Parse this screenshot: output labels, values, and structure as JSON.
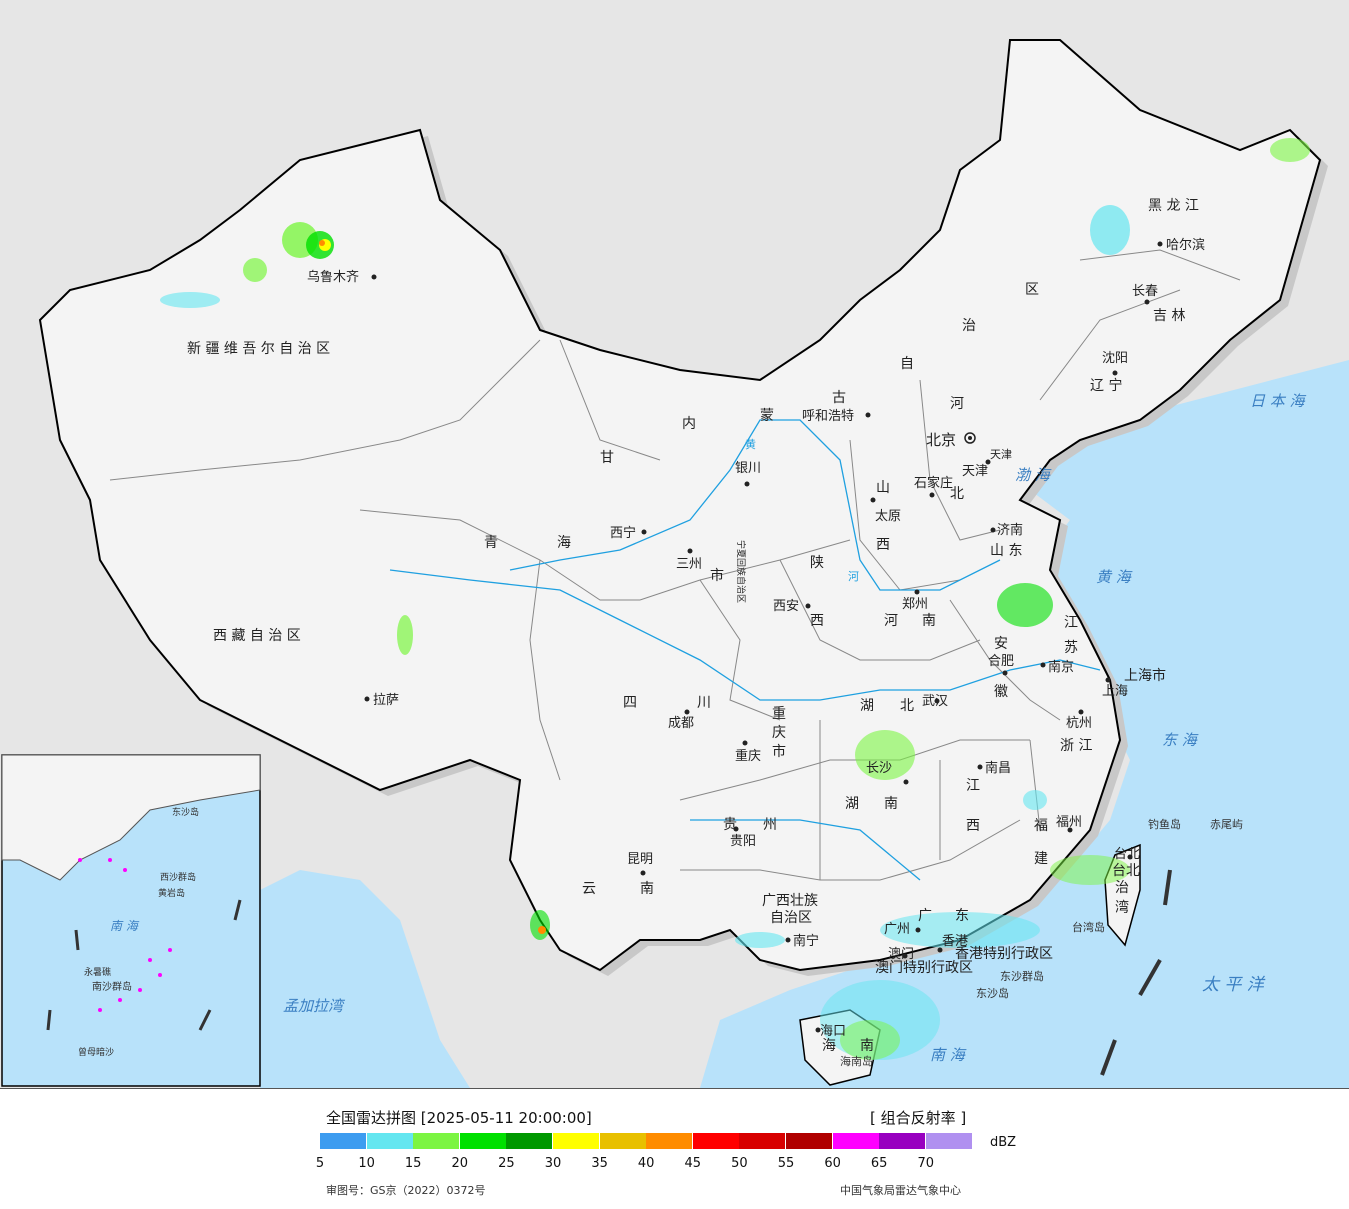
{
  "title": "全国雷达拼图 [2025-05-11 20:00:00]",
  "product": "[ 组合反射率 ]",
  "unit": "dBZ",
  "legend": {
    "colors": [
      "#3d9cf0",
      "#64e6f0",
      "#7cf542",
      "#00e000",
      "#009800",
      "#ffff00",
      "#e8c000",
      "#ff8c00",
      "#ff0000",
      "#d80000",
      "#b00000",
      "#ff00ff",
      "#9800c0",
      "#b090f0"
    ],
    "ticks": [
      "5",
      "10",
      "15",
      "20",
      "25",
      "30",
      "35",
      "40",
      "45",
      "50",
      "55",
      "60",
      "65",
      "70"
    ]
  },
  "credits": {
    "review_number": "审图号：GS京（2022）0372号",
    "agency": "中国气象局雷达气象中心"
  },
  "colors": {
    "sea": "#b8e2fa",
    "land": "#f4f4f4",
    "outside": "#e6e6e6",
    "border": "#000000",
    "province": "#888888",
    "river": "#1fa0e0"
  },
  "map_labels": {
    "regions": [
      {
        "id": "xinjiang",
        "text": "新 疆 维 吾 尔 自 治 区"
      },
      {
        "id": "xizang",
        "text": "西 藏 自 治 区"
      },
      {
        "id": "qinghai_a",
        "text": "青"
      },
      {
        "id": "qinghai_b",
        "text": "海"
      },
      {
        "id": "gansu",
        "text": "甘"
      },
      {
        "id": "sichuan_a",
        "text": "四"
      },
      {
        "id": "sichuan_b",
        "text": "川"
      },
      {
        "id": "yunnan_a",
        "text": "云"
      },
      {
        "id": "yunnan_b",
        "text": "南"
      },
      {
        "id": "guizhou_a",
        "text": "贵"
      },
      {
        "id": "guizhou_b",
        "text": "州"
      },
      {
        "id": "guangxi_a",
        "text": "广西壮族"
      },
      {
        "id": "guangxi_b",
        "text": "自治区"
      },
      {
        "id": "guangdong_a",
        "text": "广"
      },
      {
        "id": "guangdong_b",
        "text": "东"
      },
      {
        "id": "hunan_a",
        "text": "湖"
      },
      {
        "id": "hunan_b",
        "text": "南"
      },
      {
        "id": "hubei_a",
        "text": "湖"
      },
      {
        "id": "hubei_b",
        "text": "北"
      },
      {
        "id": "henan_a",
        "text": "河"
      },
      {
        "id": "henan_b",
        "text": "南"
      },
      {
        "id": "shaanxi_a",
        "text": "陕"
      },
      {
        "id": "shaanxi_b",
        "text": "西"
      },
      {
        "id": "shanxi_a",
        "text": "山"
      },
      {
        "id": "shanxi_b",
        "text": "西"
      },
      {
        "id": "hebei_a",
        "text": "河"
      },
      {
        "id": "hebei_b",
        "text": "北"
      },
      {
        "id": "shandong",
        "text": "山 东"
      },
      {
        "id": "jiangsu_a",
        "text": "江"
      },
      {
        "id": "jiangsu_b",
        "text": "苏"
      },
      {
        "id": "anhui_a",
        "text": "安"
      },
      {
        "id": "anhui_b",
        "text": "徽"
      },
      {
        "id": "zhejiang",
        "text": "浙 江"
      },
      {
        "id": "jiangxi_a",
        "text": "江"
      },
      {
        "id": "jiangxi_b",
        "text": "西"
      },
      {
        "id": "fujian_a",
        "text": "福"
      },
      {
        "id": "fujian_b",
        "text": "建"
      },
      {
        "id": "heilongjiang",
        "text": "黑 龙 江"
      },
      {
        "id": "jilin",
        "text": "吉 林"
      },
      {
        "id": "liaoning",
        "text": "辽 宁"
      },
      {
        "id": "neimeng_a",
        "text": "内"
      },
      {
        "id": "neimeng_b",
        "text": "蒙"
      },
      {
        "id": "neimeng_c",
        "text": "古"
      },
      {
        "id": "neimeng_d",
        "text": "自"
      },
      {
        "id": "neimeng_e",
        "text": "治"
      },
      {
        "id": "neimeng_f",
        "text": "区"
      },
      {
        "id": "chongqing_a",
        "text": "重"
      },
      {
        "id": "chongqing_b",
        "text": "庆"
      },
      {
        "id": "chongqing_c",
        "text": "市"
      },
      {
        "id": "shanghai",
        "text": "上海市"
      },
      {
        "id": "taiwan_a",
        "text": "台北"
      },
      {
        "id": "taiwan_b",
        "text": "治"
      },
      {
        "id": "taiwan_c",
        "text": "湾"
      },
      {
        "id": "hainan_a",
        "text": "海"
      },
      {
        "id": "hainan_b",
        "text": "南"
      },
      {
        "id": "hongkong",
        "text": "香港特别行政区"
      },
      {
        "id": "macau",
        "text": "澳门特别行政区"
      },
      {
        "id": "tianjin",
        "text": "天津"
      },
      {
        "id": "gansu_city",
        "text": "市"
      },
      {
        "id": "ningxia",
        "text": "宁夏回族自治区"
      }
    ],
    "cities": [
      {
        "id": "urumqi",
        "text": "乌鲁木齐"
      },
      {
        "id": "lhasa",
        "text": "拉萨"
      },
      {
        "id": "xining",
        "text": "西宁"
      },
      {
        "id": "lanzhou",
        "text": "三州"
      },
      {
        "id": "yinchuan",
        "text": "银川"
      },
      {
        "id": "hohhot",
        "text": "呼和浩特"
      },
      {
        "id": "beijing",
        "text": "北京"
      },
      {
        "id": "tianjin_city",
        "text": "天津"
      },
      {
        "id": "shijiazhuang",
        "text": "石家庄"
      },
      {
        "id": "taiyuan",
        "text": "太原"
      },
      {
        "id": "jinan",
        "text": "济南"
      },
      {
        "id": "zhengzhou",
        "text": "郑州"
      },
      {
        "id": "xian",
        "text": "西安"
      },
      {
        "id": "chengdu",
        "text": "成都"
      },
      {
        "id": "chongqing",
        "text": "重庆"
      },
      {
        "id": "wuhan",
        "text": "武汉"
      },
      {
        "id": "hefei",
        "text": "合肥"
      },
      {
        "id": "nanjing",
        "text": "南京"
      },
      {
        "id": "shanghai_city",
        "text": "上海"
      },
      {
        "id": "hangzhou",
        "text": "杭州"
      },
      {
        "id": "nanchang",
        "text": "南昌"
      },
      {
        "id": "changsha",
        "text": "长沙"
      },
      {
        "id": "guiyang",
        "text": "贵阳"
      },
      {
        "id": "kunming",
        "text": "昆明"
      },
      {
        "id": "nanning",
        "text": "南宁"
      },
      {
        "id": "guangzhou",
        "text": "广州"
      },
      {
        "id": "macau_city",
        "text": "澳门"
      },
      {
        "id": "hongkong_city",
        "text": "香港"
      },
      {
        "id": "fuzhou",
        "text": "福州"
      },
      {
        "id": "taipei",
        "text": "台北"
      },
      {
        "id": "haikou",
        "text": "海口"
      },
      {
        "id": "shenyang",
        "text": "沈阳"
      },
      {
        "id": "changchun",
        "text": "长春"
      },
      {
        "id": "harbin",
        "text": "哈尔滨"
      }
    ],
    "seas": [
      {
        "id": "japan_sea",
        "text": "日 本 海"
      },
      {
        "id": "bohai",
        "text": "渤 海"
      },
      {
        "id": "yellow_sea",
        "text": "黄 海"
      },
      {
        "id": "east_sea",
        "text": "东 海"
      },
      {
        "id": "pacific",
        "text": "太 平 洋"
      },
      {
        "id": "bay_bengal",
        "text": "孟加拉湾"
      },
      {
        "id": "south_sea",
        "text": "南 海"
      },
      {
        "id": "inset_south_sea",
        "text": "南 海"
      }
    ],
    "islands": [
      {
        "id": "diaoyu",
        "text": "钓鱼岛"
      },
      {
        "id": "chiwei",
        "text": "赤尾屿"
      },
      {
        "id": "taiwan_island",
        "text": "台湾岛"
      },
      {
        "id": "dongsha_islands",
        "text": "东沙群岛"
      },
      {
        "id": "dongsha_island",
        "text": "东沙岛"
      },
      {
        "id": "hainan_island",
        "text": "海南岛"
      },
      {
        "id": "inset_dongsha",
        "text": "东沙岛"
      },
      {
        "id": "inset_xisha",
        "text": "西沙群岛"
      },
      {
        "id": "inset_yongxing",
        "text": "永暑礁"
      },
      {
        "id": "inset_nansha",
        "text": "南沙群岛"
      },
      {
        "id": "inset_huangyan",
        "text": "黄岩岛"
      },
      {
        "id": "inset_zengmu",
        "text": "曾母暗沙"
      }
    ],
    "rivers": [
      {
        "id": "yellow_river",
        "text": "黄"
      },
      {
        "id": "yellow_river_b",
        "text": "河"
      }
    ]
  }
}
